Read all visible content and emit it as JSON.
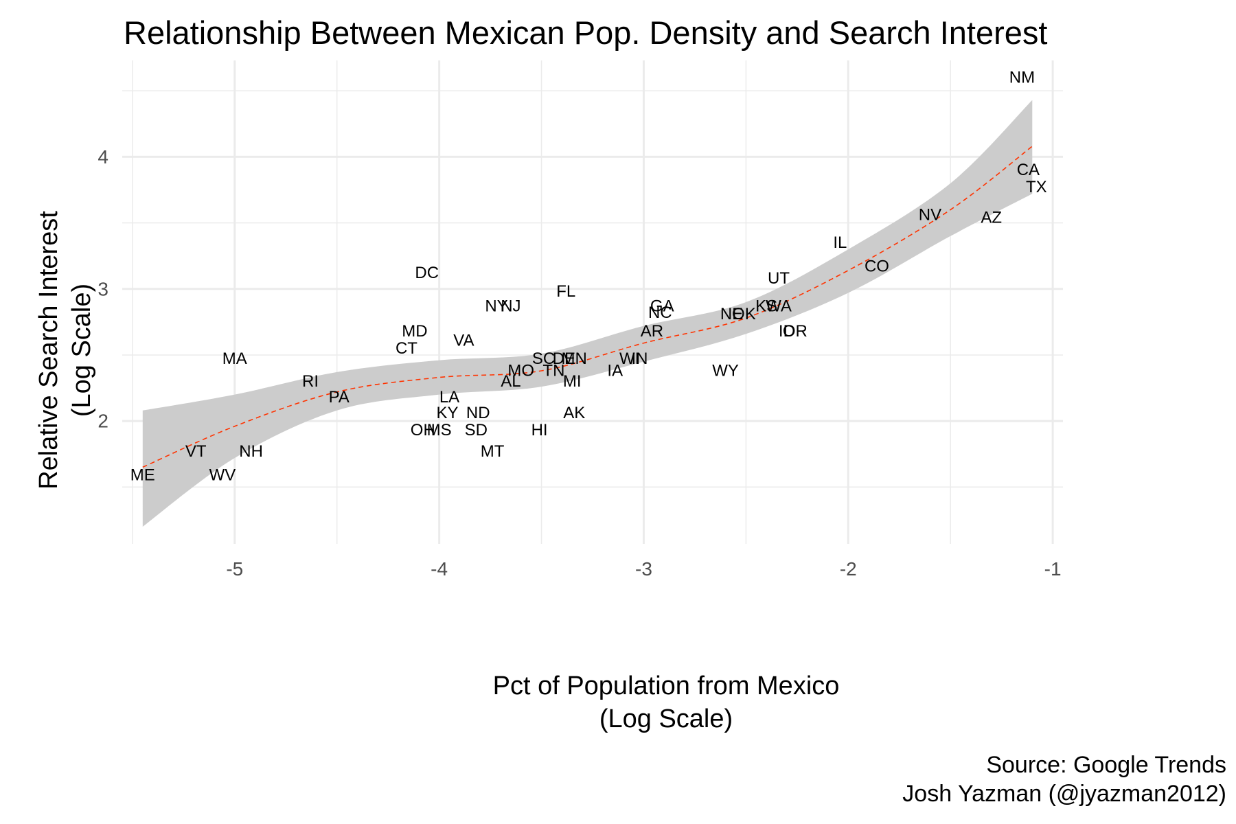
{
  "title": "Relationship Between Mexican Pop. Density and Search Interest",
  "xlabel_line1": "Pct of Population from Mexico",
  "xlabel_line2": "(Log Scale)",
  "ylabel_line1": "Relative Search Interest",
  "ylabel_line2": "(Log Scale)",
  "caption_line1": "Source: Google Trends",
  "caption_line2": "Josh Yazman (@jyazman2012)",
  "colors": {
    "trend_line": "#ff3300",
    "ribbon": "#cccccc",
    "grid": "#ebebeb"
  },
  "chart_data": {
    "type": "scatter",
    "point_style": "text-labels",
    "xlim": [
      -5.55,
      -0.95
    ],
    "ylim": [
      1.07,
      4.73
    ],
    "x_ticks": [
      "-5",
      "-4",
      "-3",
      "-2",
      "-1"
    ],
    "x_tick_values": [
      -5,
      -4,
      -3,
      -2,
      -1
    ],
    "y_ticks": [
      "2",
      "3",
      "4"
    ],
    "y_tick_values": [
      2,
      3,
      4
    ],
    "grid": true,
    "points": [
      {
        "label": "NM",
        "x": -1.15,
        "y": 4.6
      },
      {
        "label": "CA",
        "x": -1.12,
        "y": 3.9
      },
      {
        "label": "TX",
        "x": -1.08,
        "y": 3.77
      },
      {
        "label": "NV",
        "x": -1.6,
        "y": 3.56
      },
      {
        "label": "AZ",
        "x": -1.3,
        "y": 3.54
      },
      {
        "label": "IL",
        "x": -2.04,
        "y": 3.35
      },
      {
        "label": "CO",
        "x": -1.86,
        "y": 3.17
      },
      {
        "label": "UT",
        "x": -2.34,
        "y": 3.08
      },
      {
        "label": "KS",
        "x": -2.4,
        "y": 2.87
      },
      {
        "label": "WA",
        "x": -2.34,
        "y": 2.87
      },
      {
        "label": "NE",
        "x": -2.57,
        "y": 2.81
      },
      {
        "label": "OK",
        "x": -2.51,
        "y": 2.81
      },
      {
        "label": "ID",
        "x": -2.3,
        "y": 2.68
      },
      {
        "label": "OR",
        "x": -2.26,
        "y": 2.68
      },
      {
        "label": "GA",
        "x": -2.91,
        "y": 2.87
      },
      {
        "label": "NC",
        "x": -2.92,
        "y": 2.82
      },
      {
        "label": "AR",
        "x": -2.96,
        "y": 2.68
      },
      {
        "label": "WY",
        "x": -2.6,
        "y": 2.38
      },
      {
        "label": "WI",
        "x": -3.07,
        "y": 2.47
      },
      {
        "label": "IN",
        "x": -3.02,
        "y": 2.47
      },
      {
        "label": "IA",
        "x": -3.14,
        "y": 2.38
      },
      {
        "label": "FL",
        "x": -3.38,
        "y": 2.98
      },
      {
        "label": "SC",
        "x": -3.49,
        "y": 2.47
      },
      {
        "label": "DE",
        "x": -3.39,
        "y": 2.47
      },
      {
        "label": "MN",
        "x": -3.34,
        "y": 2.47
      },
      {
        "label": "TN",
        "x": -3.44,
        "y": 2.38
      },
      {
        "label": "MI",
        "x": -3.35,
        "y": 2.3
      },
      {
        "label": "AK",
        "x": -3.34,
        "y": 2.06
      },
      {
        "label": "HI",
        "x": -3.51,
        "y": 1.93
      },
      {
        "label": "NY",
        "x": -3.72,
        "y": 2.87
      },
      {
        "label": "NJ",
        "x": -3.65,
        "y": 2.87
      },
      {
        "label": "MO",
        "x": -3.6,
        "y": 2.38
      },
      {
        "label": "AL",
        "x": -3.65,
        "y": 2.3
      },
      {
        "label": "ND",
        "x": -3.81,
        "y": 2.06
      },
      {
        "label": "SD",
        "x": -3.82,
        "y": 1.93
      },
      {
        "label": "MT",
        "x": -3.74,
        "y": 1.77
      },
      {
        "label": "DC",
        "x": -4.06,
        "y": 3.12
      },
      {
        "label": "VA",
        "x": -3.88,
        "y": 2.61
      },
      {
        "label": "MD",
        "x": -4.12,
        "y": 2.68
      },
      {
        "label": "CT",
        "x": -4.16,
        "y": 2.55
      },
      {
        "label": "LA",
        "x": -3.95,
        "y": 2.18
      },
      {
        "label": "KY",
        "x": -3.96,
        "y": 2.06
      },
      {
        "label": "OH",
        "x": -4.08,
        "y": 1.93
      },
      {
        "label": "MS",
        "x": -4.0,
        "y": 1.93
      },
      {
        "label": "RI",
        "x": -4.63,
        "y": 2.3
      },
      {
        "label": "PA",
        "x": -4.49,
        "y": 2.18
      },
      {
        "label": "MA",
        "x": -5.0,
        "y": 2.47
      },
      {
        "label": "NH",
        "x": -4.92,
        "y": 1.77
      },
      {
        "label": "VT",
        "x": -5.19,
        "y": 1.77
      },
      {
        "label": "WV",
        "x": -5.06,
        "y": 1.59
      },
      {
        "label": "ME",
        "x": -5.45,
        "y": 1.59
      }
    ],
    "smooth": {
      "x": [
        -5.45,
        -5.0,
        -4.5,
        -4.0,
        -3.5,
        -3.0,
        -2.5,
        -2.0,
        -1.5,
        -1.1
      ],
      "y": [
        1.65,
        1.96,
        2.22,
        2.33,
        2.38,
        2.59,
        2.78,
        3.14,
        3.6,
        4.08
      ],
      "lower": [
        1.2,
        1.72,
        2.08,
        2.2,
        2.26,
        2.45,
        2.66,
        2.97,
        3.4,
        3.72
      ],
      "upper": [
        2.08,
        2.2,
        2.37,
        2.46,
        2.51,
        2.72,
        2.9,
        3.3,
        3.8,
        4.43
      ]
    }
  }
}
